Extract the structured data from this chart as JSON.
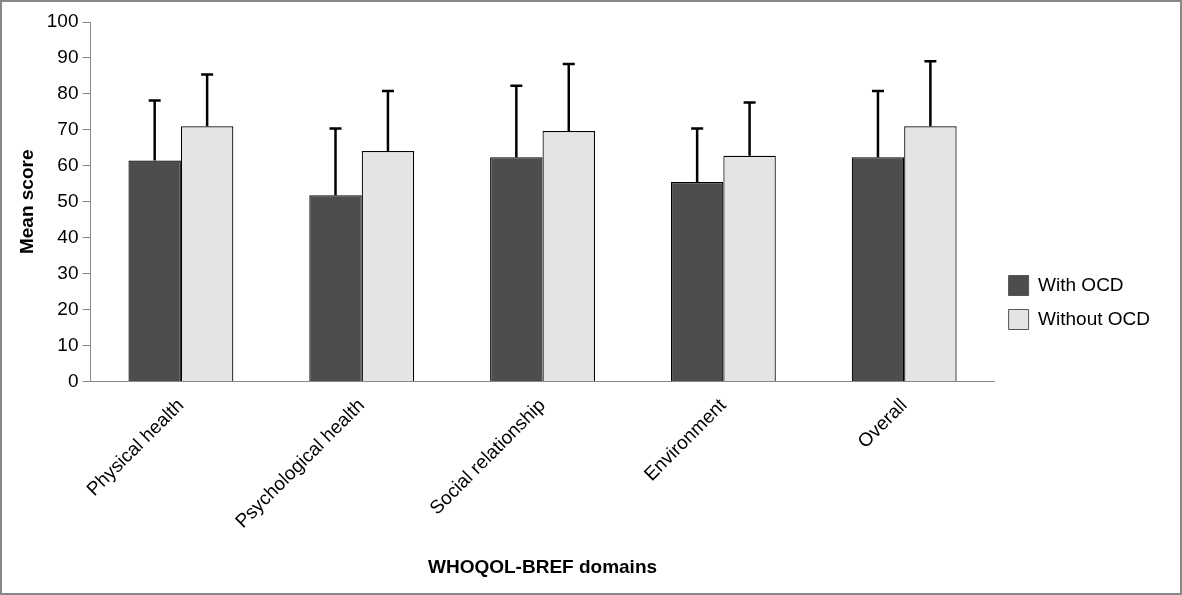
{
  "chart_data": {
    "type": "bar",
    "xlabel": "WHOQOL-BREF domains",
    "ylabel": "Mean score",
    "categories": [
      "Physical health",
      "Psychological health",
      "Social relationship",
      "Environment",
      "Overall"
    ],
    "series": [
      {
        "name": "With OCD",
        "color": "#4d4d4d",
        "values": [
          61.5,
          51.8,
          62.4,
          55.5,
          62.4
        ],
        "errors": [
          [
            61.5,
            78.2
          ],
          [
            51.8,
            70.4
          ],
          [
            62.4,
            82.3
          ],
          [
            55.5,
            70.4
          ],
          [
            62.4,
            80.8
          ]
        ]
      },
      {
        "name": "Without OCD",
        "color": "#e4e4e4",
        "values": [
          71.0,
          64.1,
          69.7,
          62.8,
          71.0
        ],
        "errors": [
          [
            71.0,
            85.4
          ],
          [
            64.1,
            80.8
          ],
          [
            69.7,
            88.3
          ],
          [
            62.8,
            77.6
          ],
          [
            71.0,
            89.1
          ]
        ]
      }
    ],
    "ylim": [
      0,
      100
    ],
    "yticks": [
      0,
      10,
      20,
      30,
      40,
      50,
      60,
      70,
      80,
      90,
      100
    ],
    "grid": false,
    "legend": "right"
  }
}
